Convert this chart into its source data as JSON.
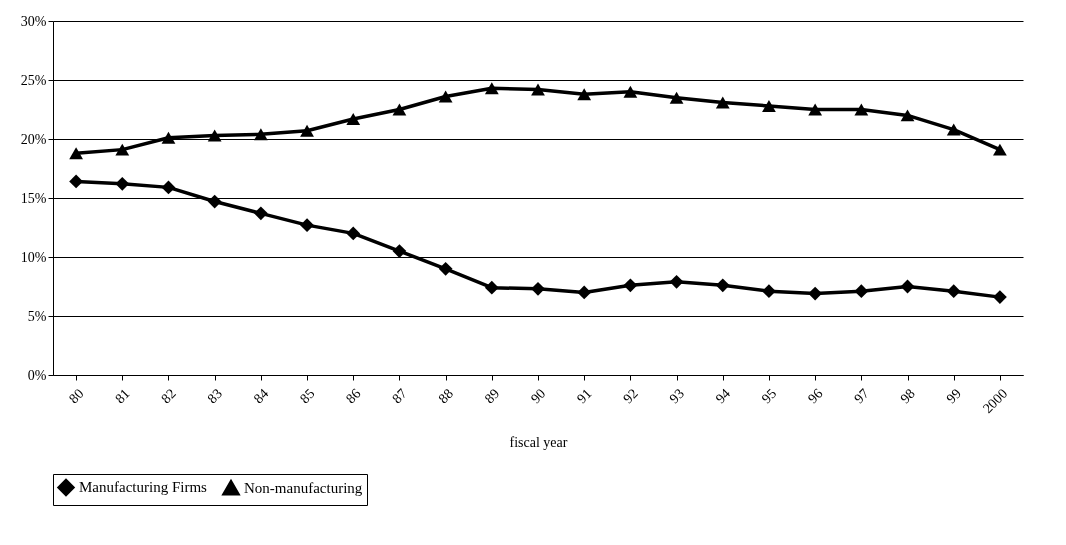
{
  "chart_data": {
    "type": "line",
    "xlabel": "fiscal year",
    "categories": [
      "80",
      "81",
      "82",
      "83",
      "84",
      "85",
      "86",
      "87",
      "88",
      "89",
      "90",
      "91",
      "92",
      "93",
      "94",
      "95",
      "96",
      "97",
      "98",
      "99",
      "2000"
    ],
    "series": [
      {
        "name": "Manufacturing Firms",
        "color": "#000000",
        "marker": "diamond",
        "values": [
          16.4,
          16.2,
          15.9,
          14.7,
          13.7,
          12.7,
          12.0,
          10.5,
          9.0,
          7.4,
          7.3,
          7.0,
          7.6,
          7.9,
          7.6,
          7.1,
          6.9,
          7.1,
          7.5,
          7.1,
          6.6
        ]
      },
      {
        "name": "Non-manufacturing",
        "color": "#000000",
        "marker": "triangle",
        "values": [
          18.8,
          19.1,
          20.1,
          20.3,
          20.4,
          20.7,
          21.7,
          22.5,
          23.6,
          24.3,
          24.2,
          23.8,
          24.0,
          23.5,
          23.1,
          22.8,
          22.5,
          22.5,
          22.0,
          20.8,
          19.1
        ]
      }
    ],
    "ylim": [
      0,
      30
    ],
    "yticks": [
      {
        "value": 0,
        "label": "0%"
      },
      {
        "value": 5,
        "label": "5%"
      },
      {
        "value": 10,
        "label": "10%"
      },
      {
        "value": 15,
        "label": "15%"
      },
      {
        "value": 20,
        "label": "20%"
      },
      {
        "value": 25,
        "label": "25%"
      },
      {
        "value": 30,
        "label": "30%"
      }
    ],
    "grid": "y",
    "legend": "bottom",
    "line_style": "solid"
  }
}
